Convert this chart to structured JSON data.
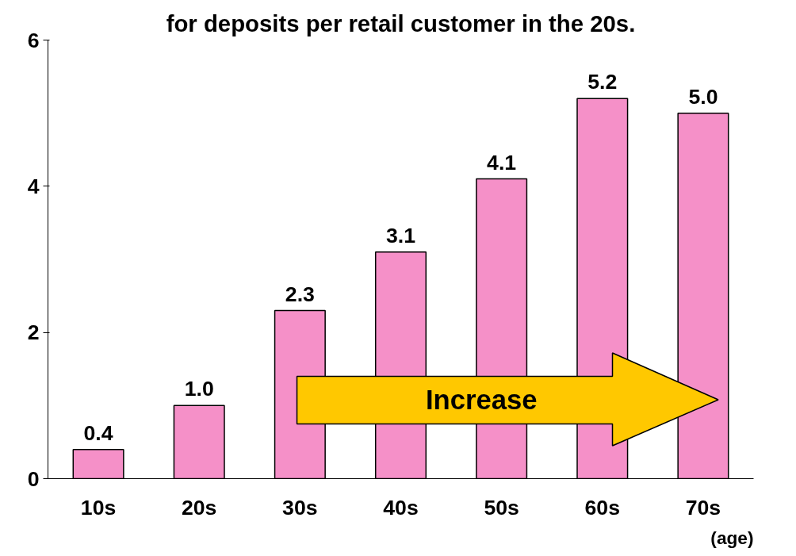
{
  "chart_data": {
    "type": "bar",
    "title": "for deposits per retail customer in the 20s.",
    "xlabel": "(age)",
    "categories": [
      "10s",
      "20s",
      "30s",
      "40s",
      "50s",
      "60s",
      "70s"
    ],
    "values": [
      0.4,
      1.0,
      2.3,
      3.1,
      4.1,
      5.2,
      5.0
    ],
    "color": "#f590c8",
    "ylim": [
      0,
      6
    ],
    "yticks": [
      0,
      2,
      4,
      6
    ],
    "grid": false,
    "value_labels": [
      "0.4",
      "1.0",
      "2.3",
      "3.1",
      "4.1",
      "5.2",
      "5.0"
    ],
    "annotations": [
      "Increase"
    ]
  }
}
